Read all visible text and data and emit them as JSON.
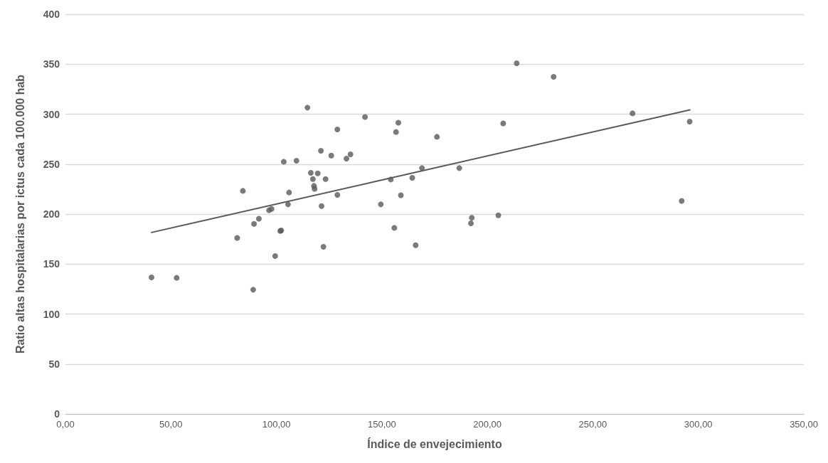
{
  "chart_data": {
    "type": "scatter",
    "xlabel": "Índice de envejecimiento",
    "ylabel": "Ratio altas hospitalarias por ictus cada 100.000 hab",
    "xlim": [
      0,
      350
    ],
    "ylim": [
      0,
      400
    ],
    "xticks": [
      {
        "value": 0,
        "label": "0,00"
      },
      {
        "value": 50,
        "label": "50,00"
      },
      {
        "value": 100,
        "label": "100,00"
      },
      {
        "value": 150,
        "label": "150,00"
      },
      {
        "value": 200,
        "label": "200,00"
      },
      {
        "value": 250,
        "label": "250,00"
      },
      {
        "value": 300,
        "label": "300,00"
      },
      {
        "value": 350,
        "label": "350,00"
      }
    ],
    "yticks": [
      0,
      50,
      100,
      150,
      200,
      250,
      300,
      350,
      400
    ],
    "grid": "y",
    "marker": "circle",
    "series": [
      {
        "color": "#595959",
        "x": [
          114.7,
          128.9,
          121.1,
          126.0,
          133.2,
          135.1,
          103.5,
          109.5,
          116.3,
          119.6,
          117.3,
          123.3,
          117.8,
          118.1,
          128.9,
          84.1,
          106.0,
          105.5,
          121.4,
          96.5,
          97.7,
          91.7,
          89.4,
          101.8,
          102.3,
          81.4,
          122.3,
          99.4,
          40.8,
          52.7,
          89.0,
          142.0,
          157.8,
          156.7,
          176.1,
          207.5,
          169.0,
          186.7,
          154.2,
          164.4,
          159.0,
          149.5,
          192.6,
          192.2,
          205.2,
          155.9,
          166.0,
          213.9,
          231.4,
          268.8,
          295.9,
          292.1
        ],
        "values": [
          306.5,
          284.7,
          263.3,
          258.6,
          255.5,
          259.8,
          252.4,
          253.4,
          241.3,
          240.8,
          235.1,
          235.1,
          228.2,
          225.3,
          219.2,
          223.2,
          221.6,
          209.7,
          208.0,
          203.8,
          205.2,
          195.4,
          190.2,
          183.1,
          183.6,
          176.2,
          167.3,
          158.0,
          136.7,
          136.2,
          124.3,
          297.2,
          291.5,
          282.1,
          277.3,
          290.8,
          246.0,
          246.0,
          234.6,
          236.3,
          218.9,
          209.7,
          196.2,
          190.7,
          198.8,
          186.2,
          168.9,
          350.9,
          337.4,
          300.8,
          292.5,
          213.2
        ]
      },
      {
        "type": "line",
        "color": "#595959",
        "x": [
          40.8,
          296.0
        ],
        "values": [
          181.6,
          304.3
        ],
        "marker": "none"
      }
    ]
  }
}
